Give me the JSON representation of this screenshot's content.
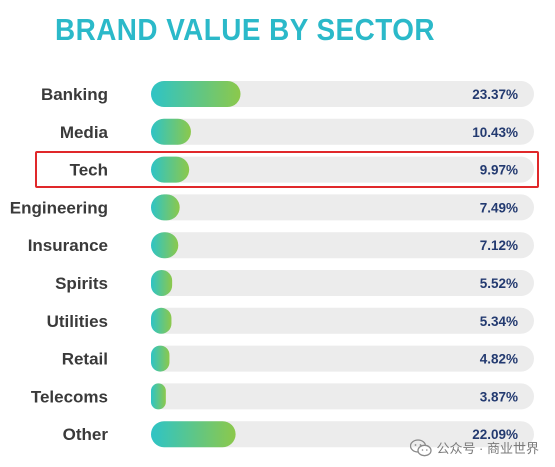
{
  "chart_data": {
    "type": "bar",
    "orientation": "horizontal",
    "title": "BRAND VALUE BY SECTOR",
    "categories": [
      "Banking",
      "Media",
      "Tech",
      "Engineering",
      "Insurance",
      "Spirits",
      "Utilities",
      "Retail",
      "Telecoms",
      "Other"
    ],
    "values": [
      23.37,
      10.43,
      9.97,
      7.49,
      7.12,
      5.52,
      5.34,
      4.82,
      3.87,
      22.09
    ],
    "value_labels": [
      "23.37%",
      "10.43%",
      "9.97%",
      "7.49%",
      "7.12%",
      "5.52%",
      "5.34%",
      "4.82%",
      "3.87%",
      "22.09%"
    ],
    "unit": "%",
    "xlim": [
      0,
      100
    ],
    "grid": false,
    "legend": "none",
    "highlighted_category": "Tech",
    "colors": {
      "title": "#2bb9c9",
      "bar_gradient_start": "#2ec4c6",
      "bar_gradient_end": "#8cc84b",
      "track": "#ececec",
      "value_text": "#233a70",
      "label_text": "#3a3a3a",
      "highlight": "#e0282a"
    }
  },
  "watermark": {
    "icon": "wechat-icon",
    "text": "公众号 · 商业世界"
  }
}
